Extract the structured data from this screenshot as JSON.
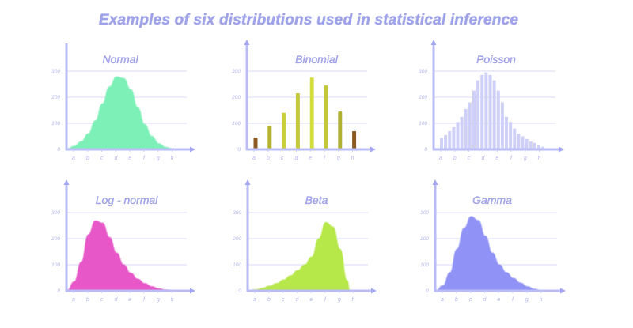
{
  "title": "Examples of six distributions used in statistical inference",
  "chart_data": [
    {
      "type": "area",
      "title": "Normal",
      "categories": [
        "a",
        "b",
        "c",
        "d",
        "e",
        "f",
        "g",
        "h"
      ],
      "yticks": [
        0,
        100,
        200,
        300
      ],
      "ylim": [
        0,
        300
      ],
      "color": "#7df0b8",
      "x": [
        0,
        0.5,
        1,
        1.5,
        2,
        2.5,
        3,
        3.5,
        4,
        4.5,
        5,
        5.5,
        6,
        6.5,
        7,
        7.5
      ],
      "values": [
        2,
        12,
        30,
        60,
        110,
        175,
        240,
        278,
        272,
        230,
        160,
        95,
        50,
        22,
        8,
        1
      ]
    },
    {
      "type": "bar",
      "title": "Binomial",
      "categories": [
        "a",
        "b",
        "c",
        "d",
        "e",
        "f",
        "g",
        "h"
      ],
      "yticks": [
        0,
        100,
        200,
        300
      ],
      "ylim": [
        0,
        300
      ],
      "values": [
        45,
        90,
        140,
        215,
        275,
        245,
        145,
        70
      ],
      "colors": [
        "#8a5a22",
        "#b5b530",
        "#c8cf3a",
        "#c4c83a",
        "#d4dd3f",
        "#c3c83a",
        "#b0b234",
        "#8a5a22"
      ]
    },
    {
      "type": "bar",
      "title": "Poisson",
      "categories": [
        "a",
        "b",
        "c",
        "d",
        "e",
        "f",
        "g",
        "h"
      ],
      "yticks": [
        0,
        100,
        200,
        300
      ],
      "ylim": [
        0,
        300
      ],
      "color": "#cfd0f7",
      "values": [
        45,
        55,
        70,
        85,
        105,
        125,
        155,
        180,
        225,
        265,
        285,
        295,
        285,
        265,
        225,
        180,
        125,
        105,
        80,
        60,
        50,
        40,
        30,
        25,
        15,
        10
      ]
    },
    {
      "type": "area",
      "title": "Log - normal",
      "categories": [
        "a",
        "b",
        "c",
        "d",
        "e",
        "f",
        "g",
        "h"
      ],
      "yticks": [
        0,
        100,
        200,
        300
      ],
      "ylim": [
        0,
        300
      ],
      "color": "#e757c8",
      "x": [
        0,
        0.5,
        1,
        1.5,
        2,
        2.5,
        3,
        3.5,
        4,
        4.5,
        5,
        5.5,
        6,
        6.5,
        7,
        7.5
      ],
      "values": [
        2,
        35,
        110,
        215,
        268,
        260,
        205,
        145,
        100,
        68,
        45,
        28,
        16,
        8,
        3,
        0
      ]
    },
    {
      "type": "area",
      "title": "Beta",
      "categories": [
        "a",
        "b",
        "c",
        "d",
        "e",
        "f",
        "g",
        "h"
      ],
      "yticks": [
        0,
        100,
        200,
        300
      ],
      "ylim": [
        0,
        300
      ],
      "color": "#b6e84a",
      "x": [
        0,
        0.5,
        1,
        1.5,
        2,
        2.5,
        3,
        3.5,
        4,
        4.5,
        5,
        5.5,
        6,
        6.5,
        7,
        7.2
      ],
      "values": [
        0,
        4,
        10,
        18,
        28,
        42,
        58,
        78,
        100,
        130,
        200,
        262,
        245,
        160,
        40,
        0
      ]
    },
    {
      "type": "area",
      "title": "Gamma",
      "categories": [
        "a",
        "b",
        "c",
        "d",
        "e",
        "f",
        "g",
        "h"
      ],
      "yticks": [
        0,
        100,
        200,
        300
      ],
      "ylim": [
        0,
        300
      ],
      "color": "#9093f5",
      "x": [
        0,
        0.5,
        1,
        1.5,
        2,
        2.5,
        3,
        3.5,
        4,
        4.5,
        5,
        5.5,
        6,
        6.5,
        7,
        7.5
      ],
      "values": [
        0,
        20,
        70,
        160,
        240,
        285,
        270,
        210,
        145,
        100,
        70,
        48,
        30,
        16,
        6,
        0
      ]
    }
  ]
}
